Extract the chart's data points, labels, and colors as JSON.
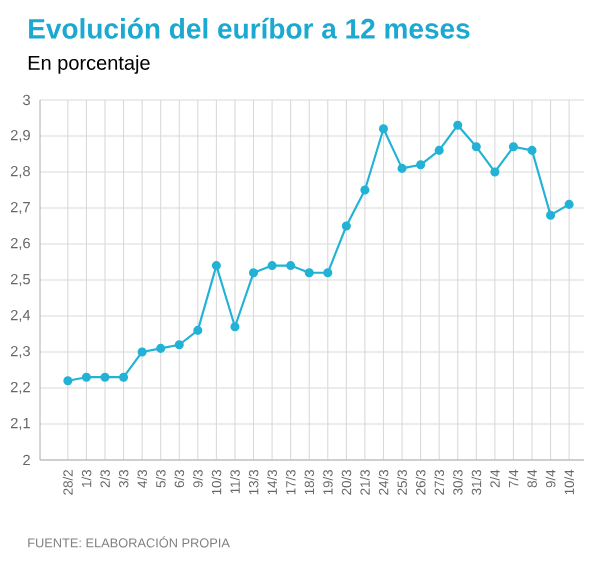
{
  "chart_data": {
    "type": "line",
    "title": "Evolución del euríbor a 12 meses",
    "subtitle": "En porcentaje",
    "annotations": [
      "FUENTE: ELABORACIÓN PROPIA"
    ],
    "categories": [
      "28/2",
      "1/3",
      "2/3",
      "3/3",
      "4/3",
      "5/3",
      "6/3",
      "9/3",
      "10/3",
      "11/3",
      "13/3",
      "14/3",
      "17/3",
      "18/3",
      "19/3",
      "20/3",
      "21/3",
      "24/3",
      "25/3",
      "26/3",
      "27/3",
      "30/3",
      "31/3",
      "2/4",
      "7/4",
      "8/4",
      "9/4",
      "10/4"
    ],
    "series": [
      {
        "color": "#22b2d6",
        "values": [
          2.22,
          2.23,
          2.23,
          2.23,
          2.3,
          2.31,
          2.32,
          2.36,
          2.54,
          2.37,
          2.52,
          2.54,
          2.54,
          2.52,
          2.52,
          2.65,
          2.75,
          2.92,
          2.81,
          2.82,
          2.86,
          2.93,
          2.87,
          2.8,
          2.87,
          2.86,
          2.68,
          2.71
        ]
      }
    ],
    "ylim": [
      2,
      3
    ],
    "yticks": [
      {
        "value": 2,
        "label": "2"
      },
      {
        "value": 2.1,
        "label": "2,1"
      },
      {
        "value": 2.2,
        "label": "2,2"
      },
      {
        "value": 2.3,
        "label": "2,3"
      },
      {
        "value": 2.4,
        "label": "2,4"
      },
      {
        "value": 2.5,
        "label": "2,5"
      },
      {
        "value": 2.6,
        "label": "2,6"
      },
      {
        "value": 2.7,
        "label": "2,7"
      },
      {
        "value": 2.8,
        "label": "2,8"
      },
      {
        "value": 2.9,
        "label": "2,9"
      },
      {
        "value": 3,
        "label": "3"
      }
    ],
    "grid": true,
    "marker": "circle",
    "line_style": "solid"
  }
}
